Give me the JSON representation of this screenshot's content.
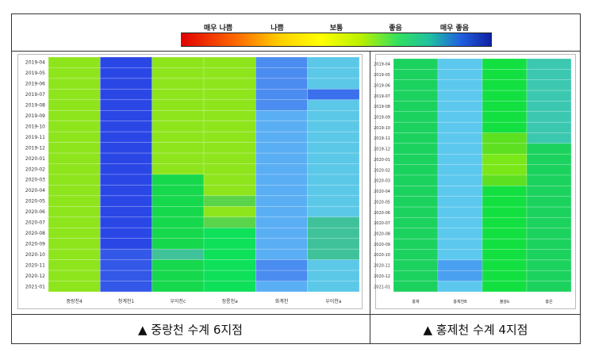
{
  "legend": {
    "labels": [
      "매우 나쁨",
      "나쁨",
      "보통",
      "좋음",
      "매우 좋음"
    ]
  },
  "captions": {
    "left": "▲ 중랑천 수계 6지점",
    "right": "▲ 홍제천 수계 4지점"
  },
  "chart_data": [
    {
      "type": "heatmap",
      "dates": [
        "2019-04",
        "2019-05",
        "2019-06",
        "2019-07",
        "2019-08",
        "2019-09",
        "2019-10",
        "2019-11",
        "2019-12",
        "2020-01",
        "2020-02",
        "2020-03",
        "2020-04",
        "2020-05",
        "2020-06",
        "2020-07",
        "2020-08",
        "2020-09",
        "2020-10",
        "2020-11",
        "2020-12",
        "2021-01"
      ],
      "stations": [
        "중랑천4",
        "청계천1",
        "우이천c",
        "정릉천a",
        "화계천",
        "우이천a"
      ],
      "colors": {
        "L": "#8ee51c",
        "D": "#2a47e6",
        "D2": "#3358e8",
        "G": "#16d84c",
        "M": "#0ee05a",
        "B": "#4b8cf0",
        "B2": "#3a70ec",
        "S": "#5aaef4",
        "C": "#5cc8e8",
        "T": "#3fc29a",
        "LG": "#5ad44a"
      },
      "cells": [
        [
          "L",
          "D",
          "L",
          "L",
          "B",
          "C"
        ],
        [
          "L",
          "D",
          "L",
          "L",
          "B",
          "C"
        ],
        [
          "L",
          "D",
          "L",
          "L",
          "B",
          "C"
        ],
        [
          "L",
          "D",
          "L",
          "L",
          "B",
          "B2"
        ],
        [
          "L",
          "D",
          "L",
          "L",
          "B",
          "C"
        ],
        [
          "L",
          "D",
          "L",
          "L",
          "S",
          "C"
        ],
        [
          "L",
          "D",
          "L",
          "L",
          "S",
          "C"
        ],
        [
          "L",
          "D",
          "L",
          "L",
          "S",
          "C"
        ],
        [
          "L",
          "D",
          "L",
          "L",
          "S",
          "C"
        ],
        [
          "L",
          "D",
          "L",
          "L",
          "S",
          "C"
        ],
        [
          "L",
          "D",
          "L",
          "L",
          "S",
          "C"
        ],
        [
          "L",
          "D",
          "G",
          "L",
          "S",
          "C"
        ],
        [
          "L",
          "D",
          "G",
          "L",
          "S",
          "C"
        ],
        [
          "L",
          "D",
          "G",
          "LG",
          "S",
          "C"
        ],
        [
          "L",
          "D",
          "G",
          "L",
          "S",
          "C"
        ],
        [
          "L",
          "D",
          "G",
          "LG",
          "S",
          "T"
        ],
        [
          "L",
          "D",
          "G",
          "M",
          "S",
          "T"
        ],
        [
          "L",
          "D",
          "G",
          "M",
          "S",
          "T"
        ],
        [
          "L",
          "D2",
          "T",
          "M",
          "S",
          "T"
        ],
        [
          "L",
          "D2",
          "G",
          "M",
          "B",
          "C"
        ],
        [
          "L",
          "D2",
          "G",
          "M",
          "B",
          "C"
        ],
        [
          "L",
          "D2",
          "G",
          "M",
          "S",
          "C"
        ]
      ]
    },
    {
      "type": "heatmap",
      "dates": [
        "2019-04",
        "2019-05",
        "2019-06",
        "2019-07",
        "2019-08",
        "2019-09",
        "2019-10",
        "2019-11",
        "2019-12",
        "2020-01",
        "2020-02",
        "2020-03",
        "2020-04",
        "2020-05",
        "2020-06",
        "2020-07",
        "2020-08",
        "2020-09",
        "2020-10",
        "2020-11",
        "2020-12",
        "2021-01"
      ],
      "stations": [
        "홍제",
        "홍제천B",
        "불광b",
        "홍은"
      ],
      "colors": {
        "G": "#1cd25e",
        "C": "#5cc8ee",
        "M": "#12e040",
        "Y": "#5ce020",
        "Y2": "#7ae818",
        "T": "#3cc8b0",
        "B": "#4aa0f0"
      },
      "cells": [
        [
          "G",
          "C",
          "M",
          "T"
        ],
        [
          "G",
          "C",
          "M",
          "T"
        ],
        [
          "G",
          "C",
          "M",
          "T"
        ],
        [
          "G",
          "C",
          "M",
          "T"
        ],
        [
          "G",
          "C",
          "M",
          "T"
        ],
        [
          "G",
          "C",
          "M",
          "T"
        ],
        [
          "G",
          "C",
          "M",
          "T"
        ],
        [
          "G",
          "C",
          "Y",
          "T"
        ],
        [
          "G",
          "C",
          "Y",
          "G"
        ],
        [
          "G",
          "C",
          "Y2",
          "G"
        ],
        [
          "G",
          "C",
          "Y2",
          "G"
        ],
        [
          "G",
          "C",
          "Y",
          "G"
        ],
        [
          "G",
          "C",
          "M",
          "G"
        ],
        [
          "G",
          "C",
          "M",
          "G"
        ],
        [
          "G",
          "C",
          "M",
          "G"
        ],
        [
          "G",
          "C",
          "M",
          "G"
        ],
        [
          "G",
          "C",
          "M",
          "G"
        ],
        [
          "G",
          "C",
          "M",
          "G"
        ],
        [
          "G",
          "C",
          "M",
          "G"
        ],
        [
          "G",
          "B",
          "M",
          "G"
        ],
        [
          "G",
          "B",
          "M",
          "G"
        ],
        [
          "G",
          "C",
          "M",
          "G"
        ]
      ]
    }
  ]
}
